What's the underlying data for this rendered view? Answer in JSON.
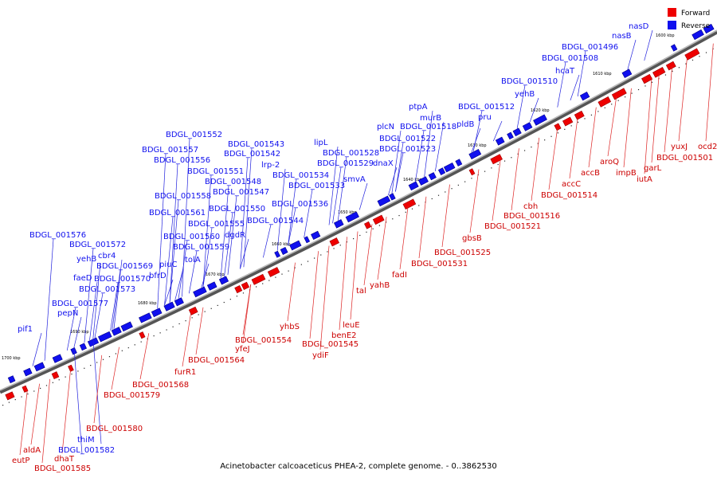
{
  "caption": "Acinetobacter calcoaceticus PHEA-2, complete genome. - 0..3862530",
  "legend": [
    {
      "label": "Forward",
      "color": "#ee0000"
    },
    {
      "label": "Reverse",
      "color": "#1010ee"
    }
  ],
  "colors": {
    "forward": "#ee0000",
    "reverse": "#1010ee",
    "backbone": "#888888"
  },
  "ticks": [
    "1600 kbp",
    "1610 kbp",
    "1620 kbp",
    "1630 kbp",
    "1640 kbp",
    "1650 kbp",
    "1660 kbp",
    "1670 kbp",
    "1680 kbp",
    "1690 kbp",
    "1700 kbp"
  ],
  "reverse_labels": [
    "nasD",
    "nasB",
    "BDGL_001496",
    "BDGL_001508",
    "hcaT",
    "BDGL_001510",
    "yehB",
    "BDGL_001512",
    "pru",
    "ptpA",
    "murB",
    "pldB",
    "plcN",
    "BDGL_001518",
    "BDGL_001522",
    "BDGL_001523",
    "lipL",
    "BDGL_001528",
    "BDGL_001529",
    "dnaX",
    "smvA",
    "BDGL_001534",
    "BDGL_001533",
    "BDGL_001536",
    "BDGL_001552",
    "BDGL_001543",
    "BDGL_001557",
    "BDGL_001542",
    "lrp-2",
    "BDGL_001556",
    "BDGL_001551",
    "BDGL_001548",
    "BDGL_001547",
    "BDGL_001558",
    "BDGL_001550",
    "BDGL_001561",
    "BDGL_001544",
    "BDGL_001555",
    "dgdR",
    "BDGL_001560",
    "BDGL_001559",
    "tolA",
    "piuC",
    "bfrD",
    "BDGL_001576",
    "BDGL_001572",
    "cbr4",
    "yehB",
    "BDGL_001569",
    "faeD",
    "BDGL_001570",
    "BDGL_001573",
    "BDGL_001577",
    "pepN",
    "pif1",
    "thiM",
    "BDGL_001582"
  ],
  "forward_labels": [
    "yuxJ",
    "ocd2",
    "BDGL_001501",
    "garL",
    "iutA",
    "impB",
    "aroQ",
    "accB",
    "accC",
    "BDGL_001514",
    "cbh",
    "BDGL_001516",
    "BDGL_001521",
    "gbsB",
    "BDGL_001525",
    "BDGL_001531",
    "fadI",
    "yahB",
    "tal",
    "leuE",
    "benE2",
    "BDGL_001545",
    "ydiF",
    "yhbS",
    "BDGL_001554",
    "yfeJ",
    "BDGL_001564",
    "furR1",
    "BDGL_001568",
    "BDGL_001579",
    "BDGL_001580",
    "aldA",
    "eutP",
    "dhaT",
    "BDGL_001585"
  ]
}
